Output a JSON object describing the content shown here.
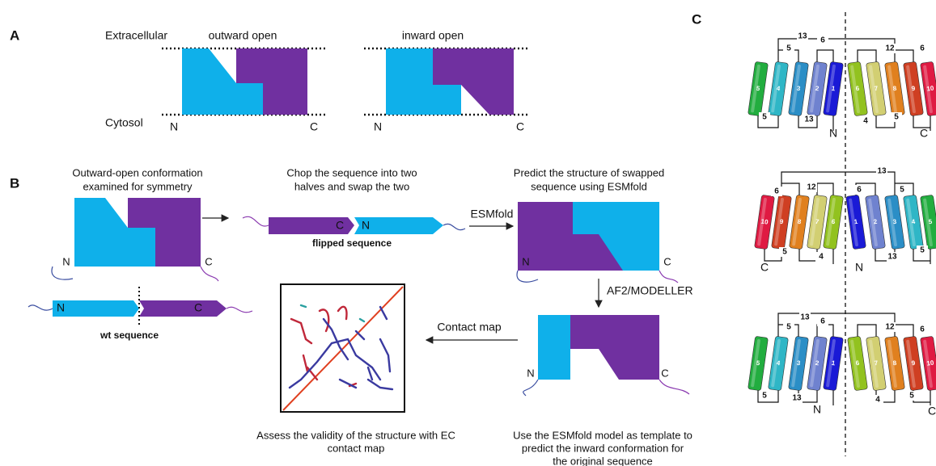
{
  "panel_a": {
    "label": "A",
    "extracellular": "Extracellular",
    "cytosol": "Cytosol",
    "outward": {
      "title": "outward open",
      "n": "N",
      "c": "C"
    },
    "inward": {
      "title": "inward open",
      "n": "N",
      "c": "C"
    }
  },
  "panel_b": {
    "label": "B",
    "step1": {
      "lines": [
        "Outward-open conformation",
        "examined for symmetry"
      ],
      "n": "N",
      "c": "C"
    },
    "wt": {
      "n": "N",
      "c": "C",
      "name": "wt sequence"
    },
    "step2": {
      "lines": [
        "Chop the sequence into two",
        "halves and swap the two"
      ],
      "c": "C",
      "n": "N",
      "name": "flipped sequence"
    },
    "esmfold": "ESMfold",
    "step3": {
      "lines": [
        "Predict the structure of swapped",
        "sequence using ESMfold"
      ],
      "n": "N",
      "c": "C"
    },
    "af2": "AF2/MODELLER",
    "step4": {
      "lines": [
        "Use the ESMfold model as template to",
        "predict the inward conformation for",
        "the original sequence"
      ],
      "n": "N",
      "c": "C"
    },
    "contact": "Contact map",
    "step5": {
      "lines": [
        "Assess the validity of the structure with EC",
        "contact map"
      ]
    }
  },
  "panel_c": {
    "label": "C",
    "topologies": [
      {
        "helices": [
          {
            "label": "5",
            "color": "#22ad3f"
          },
          {
            "label": "4",
            "color": "#2fb6c6"
          },
          {
            "label": "3",
            "color": "#2b8ec6"
          },
          {
            "label": "2",
            "color": "#6f82cf"
          },
          {
            "label": "1",
            "color": "#1a1ad6"
          },
          {
            "label": "6",
            "color": "#92c21f"
          },
          {
            "label": "7",
            "color": "#d2cf72"
          },
          {
            "label": "8",
            "color": "#e0801f"
          },
          {
            "label": "9",
            "color": "#cf3f22"
          },
          {
            "label": "10",
            "color": "#df1a42"
          }
        ],
        "loops": [
          "13",
          "5",
          "6",
          "12",
          "6",
          "5",
          "13",
          "4",
          "5"
        ],
        "n": "N",
        "c": "C"
      },
      {
        "helices": [
          {
            "label": "10",
            "color": "#df1a42"
          },
          {
            "label": "9",
            "color": "#cf3f22"
          },
          {
            "label": "8",
            "color": "#e0801f"
          },
          {
            "label": "7",
            "color": "#d2cf72"
          },
          {
            "label": "6",
            "color": "#92c21f"
          },
          {
            "label": "1",
            "color": "#1a1ad6"
          },
          {
            "label": "2",
            "color": "#6f82cf"
          },
          {
            "label": "3",
            "color": "#2b8ec6"
          },
          {
            "label": "4",
            "color": "#2fb6c6"
          },
          {
            "label": "5",
            "color": "#22ad3f"
          }
        ],
        "loops": [
          "6",
          "12",
          "13",
          "6",
          "5",
          "5",
          "4",
          "13",
          "5"
        ],
        "n": "N",
        "c": "C"
      },
      {
        "helices": [
          {
            "label": "5",
            "color": "#22ad3f"
          },
          {
            "label": "4",
            "color": "#2fb6c6"
          },
          {
            "label": "3",
            "color": "#2b8ec6"
          },
          {
            "label": "2",
            "color": "#6f82cf"
          },
          {
            "label": "1",
            "color": "#1a1ad6"
          },
          {
            "label": "6",
            "color": "#92c21f"
          },
          {
            "label": "7",
            "color": "#d2cf72"
          },
          {
            "label": "8",
            "color": "#e0801f"
          },
          {
            "label": "9",
            "color": "#cf3f22"
          },
          {
            "label": "10",
            "color": "#df1a42"
          }
        ],
        "loops": [
          "13",
          "5",
          "6",
          "12",
          "6",
          "5",
          "13",
          "4",
          "5"
        ],
        "n": "N",
        "c": "C"
      }
    ]
  }
}
